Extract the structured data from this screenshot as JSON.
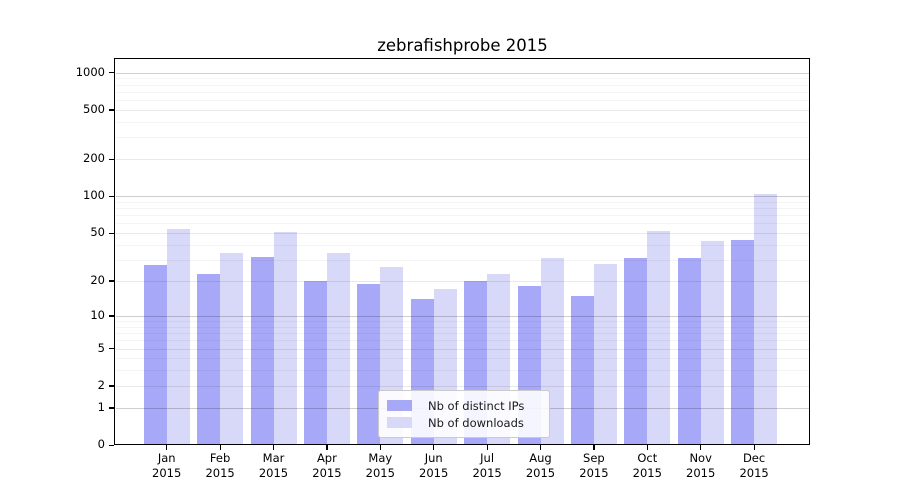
{
  "chart_data": {
    "type": "bar",
    "title": "zebrafishprobe 2015",
    "categories": [
      "Jan 2015",
      "Feb 2015",
      "Mar 2015",
      "Apr 2015",
      "May 2015",
      "Jun 2015",
      "Jul 2015",
      "Aug 2015",
      "Sep 2015",
      "Oct 2015",
      "Nov 2015",
      "Dec 2015"
    ],
    "series": [
      {
        "name": "Nb of distinct IPs",
        "color": "#a8a8f8",
        "values": [
          27,
          23,
          32,
          20,
          19,
          14,
          20,
          18,
          15,
          31,
          31,
          44
        ]
      },
      {
        "name": "Nb of downloads",
        "color": "#d8d8f8",
        "values": [
          54,
          34,
          51,
          34,
          26,
          17,
          23,
          31,
          28,
          52,
          43,
          104
        ]
      }
    ],
    "xlabel": "",
    "ylabel": "",
    "yscale": "log10(1+x)",
    "yticks": [
      0,
      1,
      2,
      5,
      10,
      20,
      50,
      100,
      200,
      500,
      1000
    ],
    "ylim": [
      0,
      1280
    ],
    "grid": "horizontal",
    "legend_position": "lower center"
  },
  "colors": {
    "background": "#ffffff",
    "axis": "#000000",
    "tick_text": "#000000"
  }
}
